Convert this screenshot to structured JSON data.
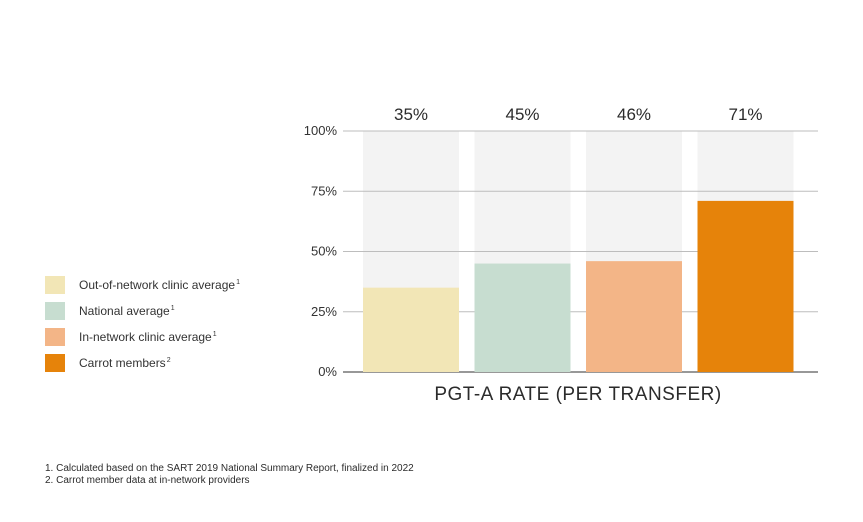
{
  "chart_data": {
    "type": "bar",
    "categories": [
      "Out-of-network clinic average",
      "National average",
      "In-network clinic average",
      "Carrot members"
    ],
    "values": [
      35,
      45,
      46,
      71
    ],
    "data_labels": [
      "35%",
      "45%",
      "46%",
      "71%"
    ],
    "colors": [
      "#f2e6b6",
      "#c7ddd0",
      "#f3b587",
      "#e6830a"
    ],
    "background_bar_color": "#f3f3f3",
    "ylim": [
      0,
      100
    ],
    "yticks": [
      0,
      25,
      50,
      75,
      100
    ],
    "ytick_labels": [
      "0%",
      "25%",
      "50%",
      "75%",
      "100%"
    ],
    "xlabel": "PGT-A RATE (PER TRANSFER)",
    "ylabel": "",
    "grid": true,
    "legend_position": "left",
    "legend": [
      {
        "label": "Out-of-network clinic average",
        "note": "1",
        "color": "#f2e6b6"
      },
      {
        "label": "National average",
        "note": "1",
        "color": "#c7ddd0"
      },
      {
        "label": "In-network clinic average",
        "note": "1",
        "color": "#f3b587"
      },
      {
        "label": "Carrot members",
        "note": "2",
        "color": "#e6830a"
      }
    ]
  },
  "footnotes": [
    "1. Calculated based on the SART 2019 National Summary Report, finalized in 2022",
    "2. Carrot member data at in-network providers"
  ]
}
